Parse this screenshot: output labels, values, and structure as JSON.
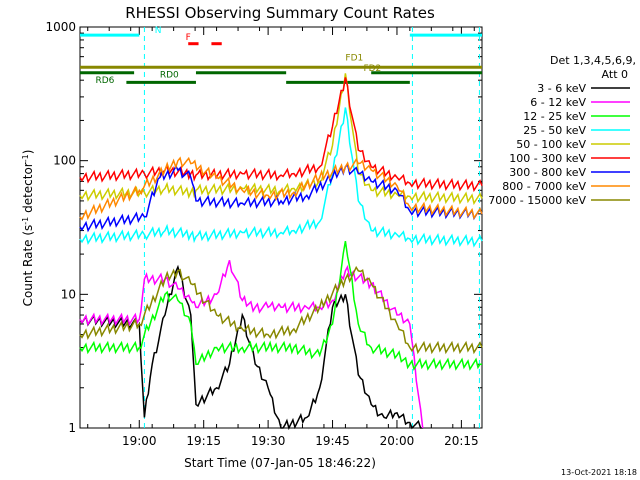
{
  "chart_data": {
    "type": "line",
    "title": "RHESSI Observing Summary Count Rates",
    "xlabel": "Start Time (07-Jan-05 18:46:22)",
    "ylabel_main": "Count Rate (s",
    "ylabel_sup1": "-1",
    "ylabel_mid": " detector",
    "ylabel_sup2": "-1",
    "ylabel_end": ")",
    "yscale": "log",
    "ylim": [
      1,
      1000
    ],
    "xlim_minutes": [
      18.77,
      20.33
    ],
    "x_ticks": [
      {
        "value": 19.0,
        "label": "19:00"
      },
      {
        "value": 19.25,
        "label": "19:15"
      },
      {
        "value": 19.5,
        "label": "19:30"
      },
      {
        "value": 19.75,
        "label": "19:45"
      },
      {
        "value": 20.0,
        "label": "20:00"
      },
      {
        "value": 20.25,
        "label": "20:15"
      }
    ],
    "y_ticks": [
      {
        "value": 1,
        "label": "1"
      },
      {
        "value": 10,
        "label": "10"
      },
      {
        "value": 100,
        "label": "100"
      },
      {
        "value": 1000,
        "label": "1000"
      }
    ],
    "legend_header": [
      "Det 1,3,4,5,6,9,",
      "Att 0"
    ],
    "series": [
      {
        "name": "3 - 6 keV",
        "color": "#000000",
        "x": [
          18.77,
          19.0,
          19.02,
          19.05,
          19.1,
          19.15,
          19.2,
          19.22,
          19.3,
          19.35,
          19.4,
          19.45,
          19.5,
          19.55,
          19.65,
          19.7,
          19.75,
          19.8,
          19.85,
          19.9,
          19.95,
          20.0,
          20.05,
          20.1
        ],
        "y": [
          6.5,
          6,
          1.2,
          3,
          7,
          16,
          7,
          1.5,
          2,
          3,
          7,
          3,
          2,
          1,
          1.2,
          2,
          8,
          10,
          2.5,
          1.5,
          1.2,
          1.3,
          1.1,
          1
        ]
      },
      {
        "name": "6 - 12 keV",
        "color": "#ff00ff",
        "x": [
          18.77,
          19.0,
          19.02,
          19.1,
          19.15,
          19.2,
          19.22,
          19.3,
          19.35,
          19.4,
          19.45,
          19.5,
          19.55,
          19.65,
          19.7,
          19.75,
          19.8,
          19.9,
          20.0,
          20.05,
          20.1
        ],
        "y": [
          6.5,
          6.5,
          13,
          13,
          11,
          9,
          8,
          10,
          18,
          9,
          8,
          8,
          8,
          8,
          8,
          9,
          15,
          12,
          7,
          6,
          1
        ]
      },
      {
        "name": "12 - 25 keV",
        "color": "#00ff00",
        "x": [
          18.77,
          19.0,
          19.02,
          19.1,
          19.15,
          19.2,
          19.22,
          19.3,
          19.4,
          19.5,
          19.6,
          19.7,
          19.75,
          19.8,
          19.85,
          19.9,
          20.0,
          20.05,
          20.33
        ],
        "y": [
          4,
          4,
          5,
          10,
          9,
          6,
          3,
          4,
          4,
          4,
          4,
          3.5,
          6,
          25,
          6,
          4,
          3.5,
          3,
          3
        ]
      },
      {
        "name": "25 - 50 keV",
        "color": "#00ffff",
        "x": [
          18.77,
          19.02,
          19.1,
          19.2,
          19.22,
          19.4,
          19.55,
          19.6,
          19.7,
          19.75,
          19.8,
          19.85,
          19.9,
          20.0,
          20.05,
          20.33
        ],
        "y": [
          26,
          28,
          30,
          28,
          27,
          29,
          29,
          30,
          35,
          80,
          250,
          50,
          30,
          28,
          26,
          25
        ]
      },
      {
        "name": "50 - 100 keV",
        "color": "#cccc00",
        "x": [
          18.77,
          19.02,
          19.1,
          19.2,
          19.22,
          19.4,
          19.55,
          19.6,
          19.7,
          19.75,
          19.8,
          19.85,
          19.9,
          20.0,
          20.05,
          20.33
        ],
        "y": [
          55,
          58,
          62,
          58,
          60,
          62,
          60,
          62,
          70,
          130,
          450,
          80,
          60,
          56,
          54,
          52
        ]
      },
      {
        "name": "100 - 300 keV",
        "color": "#ff0000",
        "x": [
          18.77,
          19.02,
          19.1,
          19.2,
          19.22,
          19.4,
          19.55,
          19.6,
          19.7,
          19.75,
          19.8,
          19.85,
          19.9,
          20.0,
          20.05,
          20.33
        ],
        "y": [
          75,
          80,
          85,
          80,
          78,
          80,
          78,
          80,
          90,
          180,
          420,
          120,
          90,
          75,
          68,
          65
        ]
      },
      {
        "name": "300 - 800 keV",
        "color": "#0000ff",
        "x": [
          18.77,
          19.02,
          19.08,
          19.15,
          19.2,
          19.22,
          19.4,
          19.55,
          19.65,
          19.75,
          19.8,
          19.85,
          19.9,
          20.0,
          20.05,
          20.33
        ],
        "y": [
          32,
          38,
          75,
          85,
          75,
          50,
          48,
          50,
          55,
          75,
          90,
          80,
          70,
          60,
          42,
          40
        ]
      },
      {
        "name": "800 - 7000 keV",
        "color": "#ff8800",
        "x": [
          18.77,
          19.0,
          19.1,
          19.15,
          19.2,
          19.3,
          19.4,
          19.5,
          19.6,
          19.7,
          19.8,
          19.85,
          19.9,
          20.0,
          20.05,
          20.33
        ],
        "y": [
          38,
          60,
          85,
          100,
          95,
          75,
          60,
          55,
          58,
          75,
          90,
          95,
          85,
          65,
          45,
          40
        ]
      },
      {
        "name": "7000 - 15000 keV",
        "color": "#888800",
        "x": [
          18.77,
          19.0,
          19.1,
          19.15,
          19.2,
          19.3,
          19.4,
          19.5,
          19.6,
          19.7,
          19.8,
          19.85,
          19.9,
          20.0,
          20.05,
          20.33
        ],
        "y": [
          5,
          6,
          13,
          15,
          12,
          7,
          5.5,
          5,
          5.5,
          8,
          13,
          15,
          12,
          6,
          4,
          4
        ]
      }
    ],
    "annotations": [
      {
        "label": "FD1",
        "x": 19.8,
        "y": 560,
        "color": "#888800"
      },
      {
        "label": "FD2",
        "x": 19.87,
        "y": 470,
        "color": "#888800"
      },
      {
        "label": "N",
        "x": 19.06,
        "y": 900,
        "color": "#00ffff"
      },
      {
        "label": "F",
        "x": 19.18,
        "y": 800,
        "color": "#ff0000"
      },
      {
        "label": "RD0",
        "x": 19.08,
        "y": 420,
        "color": "#006600"
      },
      {
        "label": "RD6",
        "x": 18.83,
        "y": 380,
        "color": "#006600"
      }
    ],
    "status_bars": [
      {
        "name": "night-bars",
        "color": "#00ffff",
        "y": 870,
        "ranges": [
          [
            18.77,
            19.0
          ],
          [
            20.05,
            20.33
          ]
        ]
      },
      {
        "name": "flare-bars",
        "color": "#ff0000",
        "y": 750,
        "ranges": [
          [
            19.19,
            19.23
          ],
          [
            19.28,
            19.32
          ]
        ]
      },
      {
        "name": "fd-bar",
        "color": "#888800",
        "y": 500,
        "ranges": [
          [
            18.77,
            20.33
          ]
        ]
      },
      {
        "name": "rd0-bars",
        "color": "#006600",
        "y": 455,
        "ranges": [
          [
            18.77,
            18.98
          ],
          [
            19.22,
            19.57
          ],
          [
            19.9,
            20.33
          ]
        ]
      },
      {
        "name": "rd6-bars",
        "color": "#006600",
        "y": 385,
        "ranges": [
          [
            18.95,
            19.22
          ],
          [
            19.57,
            20.05
          ]
        ]
      }
    ],
    "vertical_markers": [
      {
        "x": 19.02,
        "color": "#00ffff"
      },
      {
        "x": 20.06,
        "color": "#00ffff"
      },
      {
        "x": 20.32,
        "color": "#00ffff"
      }
    ],
    "timestamp": "13-Oct-2021 18:18"
  }
}
